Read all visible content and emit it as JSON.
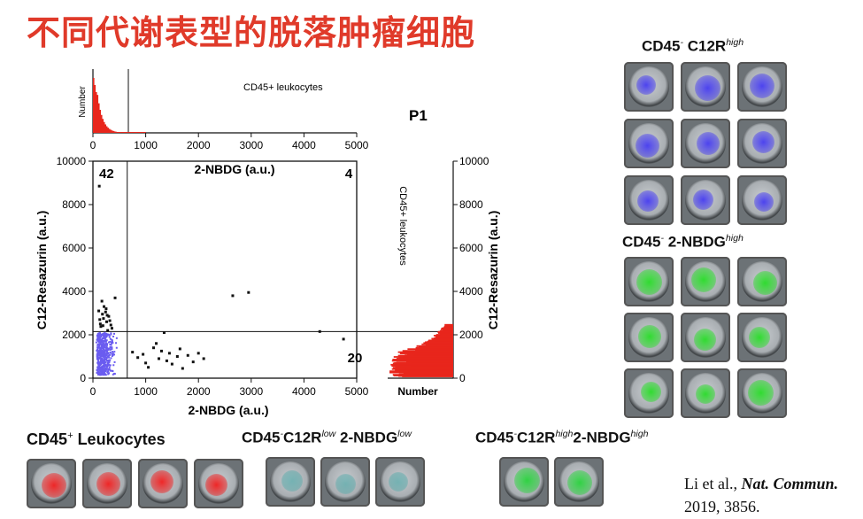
{
  "title": "不同代谢表型的脱落肿瘤细胞",
  "panel_labels": {
    "p1": "P1",
    "top_right": {
      "main": "CD45",
      "sup1": "-",
      "mid": "C12R",
      "sup2": "high"
    },
    "mid_right": {
      "main": "CD45",
      "sup1": "-",
      "mid": "2-NBDG",
      "sup2": "high"
    },
    "bottom_left": {
      "main": "CD45",
      "sup1": "+",
      "mid": "Leukocytes"
    },
    "bottom_mid": {
      "main": "CD45",
      "sup1": "-",
      "mid": "C12R",
      "sup2": "low",
      "mid2": "2-NBDG",
      "sup3": "low"
    },
    "bottom_right": {
      "main": "CD45",
      "sup1": "-",
      "mid": "C12R",
      "sup2": "high",
      "mid2": "2-NBDG",
      "sup3": "high"
    }
  },
  "citation": {
    "authors": "Li et al.,",
    "journal": "Nat. Commun.",
    "year_vol": "2019, 3856."
  },
  "chart_data": [
    {
      "type": "scatter",
      "xlabel": "2-NBDG (a.u.)",
      "ylabel": "C12-Resazurin (a.u.)",
      "xlim": [
        0,
        5000
      ],
      "ylim": [
        0,
        10000
      ],
      "xticks": [
        "0",
        "1000",
        "2000",
        "3000",
        "4000",
        "5000"
      ],
      "yticks": [
        "0",
        "2000",
        "4000",
        "6000",
        "8000",
        "10000"
      ],
      "gate_x": 650,
      "gate_y": 2150,
      "quadrant_counts": {
        "upper_left": "42",
        "upper_right": "4",
        "lower_right": "20"
      },
      "series": [
        {
          "color": "#111111",
          "points": [
            [
              120,
              8850
            ],
            [
              170,
              3550
            ],
            [
              210,
              3300
            ],
            [
              240,
              3050
            ],
            [
              180,
              2950
            ],
            [
              300,
              2850
            ],
            [
              130,
              2700
            ],
            [
              260,
              2600
            ],
            [
              340,
              2450
            ],
            [
              150,
              2380
            ],
            [
              420,
              3700
            ],
            [
              280,
              2200
            ],
            [
              110,
              3100
            ],
            [
              200,
              2750
            ],
            [
              360,
              2300
            ],
            [
              250,
              3200
            ],
            [
              140,
              2500
            ],
            [
              320,
              2650
            ],
            [
              190,
              2420
            ],
            [
              270,
              2900
            ],
            [
              2650,
              3800
            ],
            [
              2950,
              3950
            ],
            [
              4300,
              2150
            ],
            [
              4750,
              1800
            ],
            [
              750,
              1200
            ],
            [
              850,
              950
            ],
            [
              950,
              1100
            ],
            [
              1000,
              700
            ],
            [
              1050,
              500
            ],
            [
              1150,
              1400
            ],
            [
              1200,
              1600
            ],
            [
              1250,
              900
            ],
            [
              1300,
              1250
            ],
            [
              1350,
              2100
            ],
            [
              1400,
              800
            ],
            [
              1450,
              1150
            ],
            [
              1500,
              650
            ],
            [
              1600,
              1000
            ],
            [
              1650,
              1350
            ],
            [
              1700,
              450
            ],
            [
              1800,
              1050
            ],
            [
              1900,
              750
            ],
            [
              2000,
              1150
            ],
            [
              2100,
              900
            ]
          ]
        },
        {
          "color": "#6a5cf0",
          "points": "dense cluster near origin"
        }
      ]
    },
    {
      "type": "bar",
      "title": "CD45+ leukocytes",
      "ylabel": "Number",
      "xticks": [
        "0",
        "1000",
        "2000",
        "3000",
        "4000",
        "5000"
      ],
      "xlim": [
        0,
        5000
      ],
      "gate_x": 650
    },
    {
      "type": "bar",
      "orientation": "horizontal",
      "title": "CD45+ leukocytes",
      "xlabel": "Number",
      "ylabel": "C12-Resazurin",
      "yticks": [
        "0",
        "2000",
        "4000",
        "6000",
        "8000",
        "10000"
      ],
      "ylim": [
        0,
        10000
      ],
      "gate_y": 2150
    }
  ]
}
